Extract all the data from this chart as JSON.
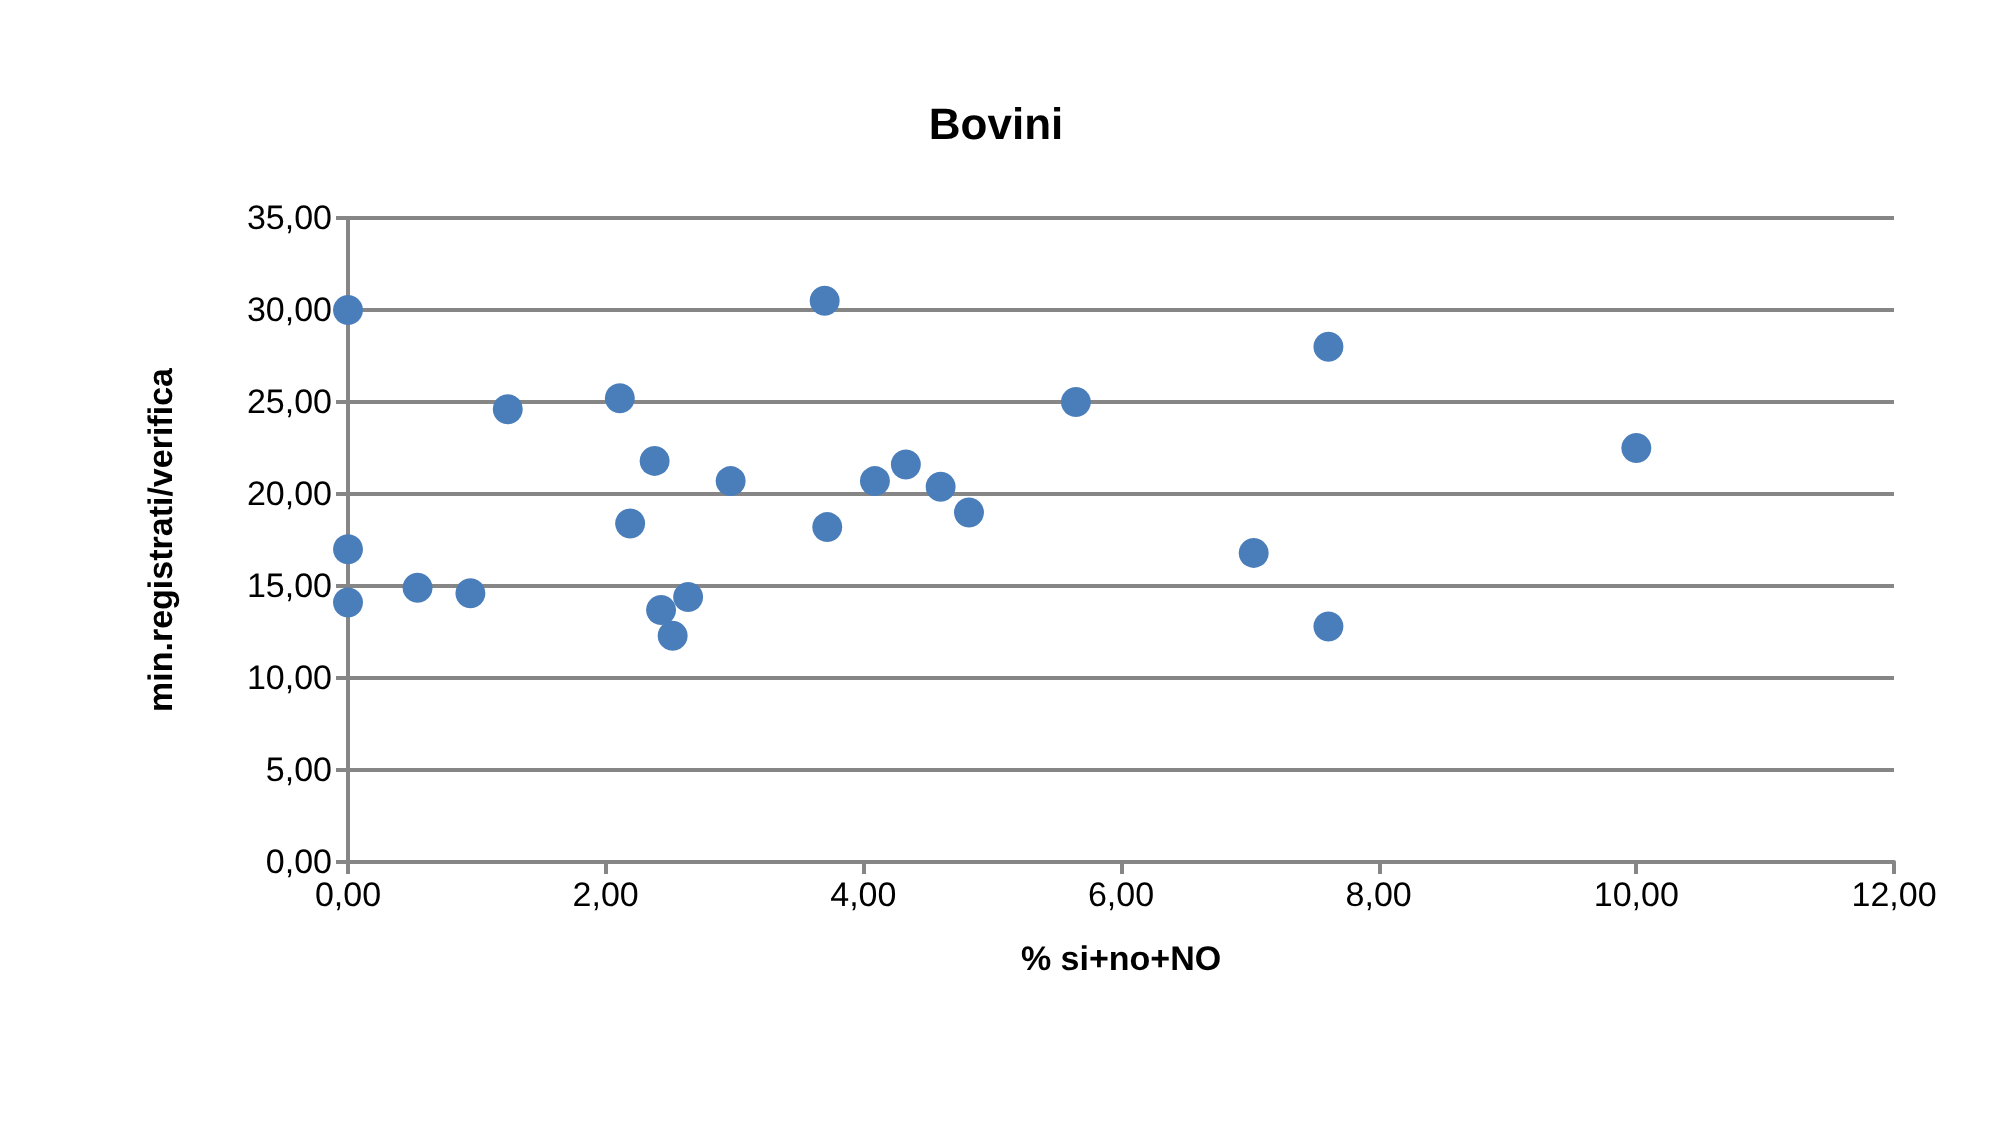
{
  "chart_data": {
    "type": "scatter",
    "title": "Bovini",
    "xlabel": "% si+no+NO",
    "ylabel": "min.registrati/verifica",
    "x": [
      0,
      0,
      0,
      0.54,
      0.95,
      1.24,
      2.11,
      2.38,
      2.19,
      2.97,
      2.43,
      2.64,
      2.52,
      3.7,
      3.72,
      4.09,
      4.33,
      4.6,
      4.82,
      5.65,
      7.61,
      10.0,
      7.03,
      7.61
    ],
    "series": [
      {
        "color": "#4a7ebb",
        "values": [
          30.0,
          17.0,
          14.1,
          14.9,
          14.6,
          24.6,
          25.2,
          21.8,
          18.4,
          20.7,
          13.7,
          14.4,
          12.3,
          30.5,
          18.2,
          20.7,
          21.6,
          20.4,
          19.0,
          25.0,
          28.0,
          22.5,
          16.8,
          12.8
        ]
      }
    ],
    "xlim": [
      0,
      12
    ],
    "xticks": [
      {
        "value": 0,
        "label": "0,00"
      },
      {
        "value": 2,
        "label": "2,00"
      },
      {
        "value": 4,
        "label": "4,00"
      },
      {
        "value": 6,
        "label": "6,00"
      },
      {
        "value": 8,
        "label": "8,00"
      },
      {
        "value": 10,
        "label": "10,00"
      },
      {
        "value": 12,
        "label": "12,00"
      }
    ],
    "ylim": [
      0,
      35
    ],
    "yticks": [
      {
        "value": 0,
        "label": "0,00"
      },
      {
        "value": 5,
        "label": "5,00"
      },
      {
        "value": 10,
        "label": "10,00"
      },
      {
        "value": 15,
        "label": "15,00"
      },
      {
        "value": 20,
        "label": "20,00"
      },
      {
        "value": 25,
        "label": "25,00"
      },
      {
        "value": 30,
        "label": "30,00"
      },
      {
        "value": 35,
        "label": "35,00"
      }
    ],
    "grid": "y",
    "marker": "circle"
  }
}
